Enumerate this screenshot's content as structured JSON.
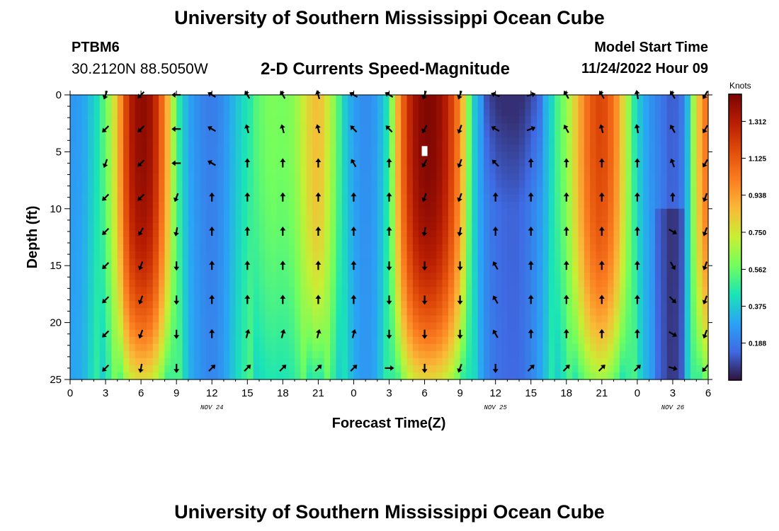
{
  "page": {
    "title": "University of Southern Mississippi Ocean Cube",
    "footer_title": "University of Southern Mississippi Ocean Cube",
    "station_id": "PTBM6",
    "station_coords": "30.2120N  88.5050W",
    "subtitle": "2-D Currents Speed-Magnitude",
    "model_start_label": "Model Start Time",
    "model_start_value": "11/24/2022 Hour 09"
  },
  "colors": {
    "ramp": [
      "#30123b",
      "#3f6ae3",
      "#2aa3f5",
      "#1ae4b6",
      "#72fe5e",
      "#c8ef34",
      "#f9ba38",
      "#fb7e21",
      "#e14d0a",
      "#b91d02",
      "#7a0403"
    ]
  },
  "chart_data": {
    "type": "heatmap",
    "title": "2-D Currents Speed-Magnitude",
    "xlabel": "Forecast Time(Z)",
    "ylabel": "Depth (ft)",
    "x_range_hours": [
      0,
      54
    ],
    "y_range_ft": [
      0,
      25
    ],
    "x_ticks": [
      {
        "hour": 0,
        "label": "0"
      },
      {
        "hour": 3,
        "label": "3"
      },
      {
        "hour": 6,
        "label": "6"
      },
      {
        "hour": 9,
        "label": "9"
      },
      {
        "hour": 12,
        "label": "12"
      },
      {
        "hour": 15,
        "label": "15"
      },
      {
        "hour": 18,
        "label": "18"
      },
      {
        "hour": 21,
        "label": "21"
      },
      {
        "hour": 24,
        "label": "0"
      },
      {
        "hour": 27,
        "label": "3"
      },
      {
        "hour": 30,
        "label": "6"
      },
      {
        "hour": 33,
        "label": "9"
      },
      {
        "hour": 36,
        "label": "12"
      },
      {
        "hour": 39,
        "label": "15"
      },
      {
        "hour": 42,
        "label": "18"
      },
      {
        "hour": 45,
        "label": "21"
      },
      {
        "hour": 48,
        "label": "0"
      },
      {
        "hour": 51,
        "label": "3"
      },
      {
        "hour": 54,
        "label": "6"
      }
    ],
    "y_ticks": [
      {
        "depth": 0,
        "label": "0"
      },
      {
        "depth": 5,
        "label": "5"
      },
      {
        "depth": 10,
        "label": "10"
      },
      {
        "depth": 15,
        "label": "15"
      },
      {
        "depth": 20,
        "label": "20"
      },
      {
        "depth": 25,
        "label": "25"
      }
    ],
    "date_labels": [
      {
        "hour": 12,
        "label": "NOV 24"
      },
      {
        "hour": 36,
        "label": "NOV 25"
      },
      {
        "hour": 51,
        "label": "NOV 26"
      }
    ],
    "colorbar": {
      "title": "Knots",
      "min": 0.0,
      "max": 1.45,
      "ticks": [
        "1.312",
        "1.125",
        "0.938",
        "0.750",
        "0.562",
        "0.375",
        "0.188"
      ]
    },
    "speed_profile": [
      {
        "hour": 0,
        "speed": 0.28
      },
      {
        "hour": 1,
        "speed": 0.3
      },
      {
        "hour": 2,
        "speed": 0.42
      },
      {
        "hour": 3,
        "speed": 0.55
      },
      {
        "hour": 4,
        "speed": 0.85
      },
      {
        "hour": 5,
        "speed": 1.3
      },
      {
        "hour": 6,
        "speed": 1.42
      },
      {
        "hour": 7,
        "speed": 1.35
      },
      {
        "hour": 8,
        "speed": 1.0
      },
      {
        "hour": 9,
        "speed": 0.55
      },
      {
        "hour": 10,
        "speed": 0.32
      },
      {
        "hour": 11,
        "speed": 0.24
      },
      {
        "hour": 12,
        "speed": 0.2
      },
      {
        "hour": 13,
        "speed": 0.26
      },
      {
        "hour": 14,
        "speed": 0.38
      },
      {
        "hour": 15,
        "speed": 0.48
      },
      {
        "hour": 16,
        "speed": 0.55
      },
      {
        "hour": 17,
        "speed": 0.6
      },
      {
        "hour": 18,
        "speed": 0.58
      },
      {
        "hour": 19,
        "speed": 0.62
      },
      {
        "hour": 20,
        "speed": 0.78
      },
      {
        "hour": 21,
        "speed": 0.88
      },
      {
        "hour": 22,
        "speed": 0.7
      },
      {
        "hour": 23,
        "speed": 0.45
      },
      {
        "hour": 24,
        "speed": 0.3
      },
      {
        "hour": 25,
        "speed": 0.24
      },
      {
        "hour": 26,
        "speed": 0.3
      },
      {
        "hour": 27,
        "speed": 0.5
      },
      {
        "hour": 28,
        "speed": 1.05
      },
      {
        "hour": 29,
        "speed": 1.35
      },
      {
        "hour": 30,
        "speed": 1.44
      },
      {
        "hour": 31,
        "speed": 1.42
      },
      {
        "hour": 32,
        "speed": 1.28
      },
      {
        "hour": 33,
        "speed": 0.98
      },
      {
        "hour": 34,
        "speed": 0.45
      },
      {
        "hour": 35,
        "speed": 0.24
      },
      {
        "hour": 36,
        "speed": 0.16
      },
      {
        "hour": 37,
        "speed": 0.14
      },
      {
        "hour": 38,
        "speed": 0.14
      },
      {
        "hour": 39,
        "speed": 0.2
      },
      {
        "hour": 40,
        "speed": 0.3
      },
      {
        "hour": 41,
        "speed": 0.48
      },
      {
        "hour": 42,
        "speed": 0.62
      },
      {
        "hour": 43,
        "speed": 0.88
      },
      {
        "hour": 44,
        "speed": 1.12
      },
      {
        "hour": 45,
        "speed": 1.2
      },
      {
        "hour": 46,
        "speed": 1.05
      },
      {
        "hour": 47,
        "speed": 0.72
      },
      {
        "hour": 48,
        "speed": 0.42
      },
      {
        "hour": 49,
        "speed": 0.28
      },
      {
        "hour": 50,
        "speed": 0.2
      },
      {
        "hour": 51,
        "speed": 0.12
      },
      {
        "hour": 52,
        "speed": 0.22
      },
      {
        "hour": 53,
        "speed": 0.8
      },
      {
        "hour": 54,
        "speed": 1.1
      }
    ],
    "arrow_hours": [
      3,
      6,
      9,
      12,
      15,
      18,
      21,
      24,
      27,
      30,
      33,
      36,
      39,
      42,
      45,
      48,
      51,
      54
    ],
    "arrow_depths": [
      0,
      3,
      6,
      9,
      12,
      15,
      18,
      21,
      24
    ],
    "arrow_directions_deg": [
      [
        200,
        225,
        200,
        225,
        225,
        225,
        225,
        225,
        225
      ],
      [
        225,
        225,
        225,
        225,
        210,
        200,
        200,
        200,
        190
      ],
      [
        270,
        270,
        270,
        200,
        190,
        180,
        180,
        180,
        180
      ],
      [
        300,
        300,
        300,
        0,
        0,
        0,
        0,
        0,
        45
      ],
      [
        330,
        345,
        0,
        0,
        0,
        0,
        0,
        15,
        45
      ],
      [
        330,
        345,
        0,
        0,
        0,
        0,
        0,
        15,
        45
      ],
      [
        345,
        345,
        0,
        0,
        0,
        0,
        0,
        15,
        45
      ],
      [
        300,
        315,
        330,
        0,
        0,
        0,
        0,
        15,
        45
      ],
      [
        300,
        315,
        0,
        0,
        0,
        180,
        180,
        180,
        90
      ],
      [
        200,
        210,
        210,
        200,
        190,
        180,
        180,
        180,
        180
      ],
      [
        200,
        200,
        200,
        200,
        190,
        180,
        180,
        180,
        200
      ],
      [
        290,
        300,
        315,
        0,
        0,
        330,
        330,
        330,
        180
      ],
      [
        75,
        70,
        0,
        0,
        0,
        0,
        0,
        0,
        45
      ],
      [
        330,
        330,
        0,
        0,
        0,
        0,
        0,
        0,
        45
      ],
      [
        330,
        345,
        0,
        0,
        0,
        0,
        0,
        0,
        45
      ],
      [
        350,
        350,
        0,
        0,
        0,
        0,
        0,
        0,
        45
      ],
      [
        330,
        330,
        340,
        0,
        120,
        150,
        135,
        120,
        105
      ],
      [
        210,
        210,
        210,
        200,
        200,
        200,
        200,
        200,
        220
      ]
    ]
  }
}
